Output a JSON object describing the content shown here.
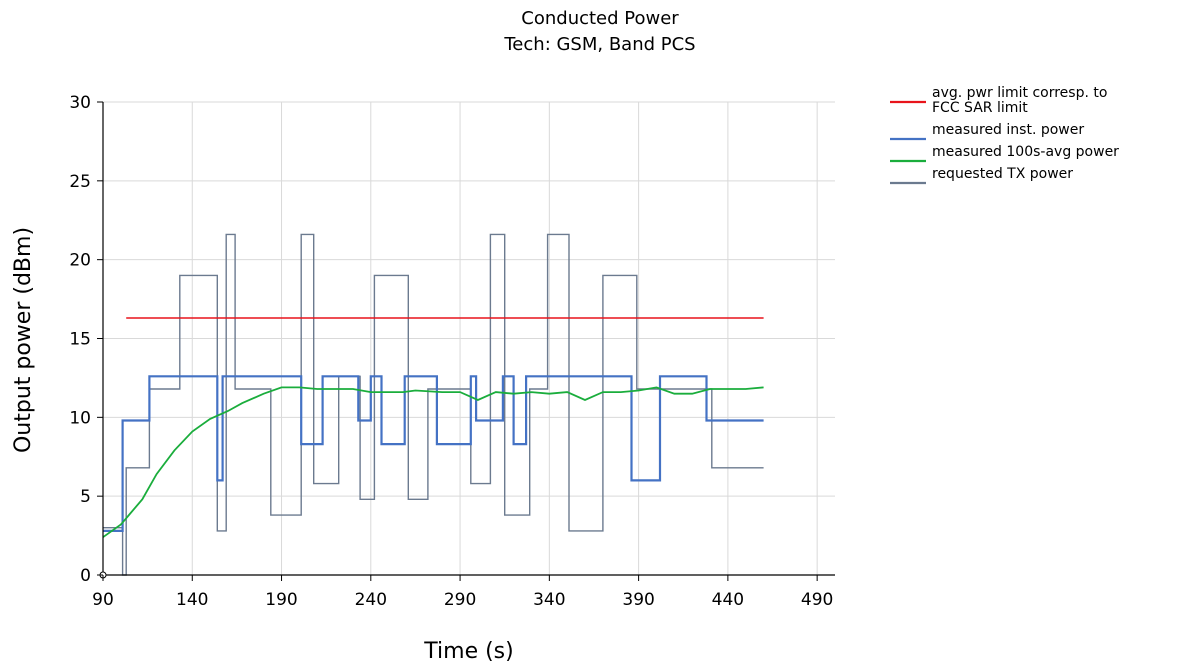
{
  "chart_data": {
    "type": "line",
    "title": "Conducted Power",
    "subtitle": "Tech: GSM, Band PCS",
    "xlabel": "Time (s)",
    "ylabel": "Output power (dBm)",
    "xlim": [
      90,
      500
    ],
    "ylim": [
      0,
      30
    ],
    "xticks": [
      90,
      140,
      190,
      240,
      290,
      340,
      390,
      440,
      490
    ],
    "yticks": [
      0,
      5,
      10,
      15,
      20,
      25,
      30
    ],
    "grid": true,
    "legend_position": "top-right",
    "series": [
      {
        "name": "avg. pwr limit corresp. to FCC SAR limit",
        "color": "#e8141b",
        "x": [
          103,
          460
        ],
        "y": [
          16.3,
          16.3
        ]
      },
      {
        "name": "measured inst. power",
        "color": "#4472c4",
        "x": [
          90,
          101,
          101,
          103,
          103,
          116,
          116,
          117,
          117,
          132,
          132,
          154,
          154,
          157,
          157,
          165,
          165,
          183,
          183,
          201,
          201,
          213,
          213,
          233,
          233,
          240,
          240,
          246,
          246,
          259,
          259,
          266,
          266,
          277,
          277,
          296,
          296,
          299,
          299,
          314,
          314,
          320,
          320,
          327,
          327,
          339,
          339,
          346,
          346,
          357,
          357,
          368,
          368,
          386,
          386,
          402,
          402,
          412,
          412,
          428,
          428,
          447,
          447,
          460
        ],
        "y": [
          2.8,
          2.8,
          9.8,
          9.8,
          9.8,
          9.8,
          12.6,
          12.6,
          12.6,
          12.6,
          12.6,
          12.6,
          6,
          6,
          12.6,
          12.6,
          12.6,
          12.6,
          12.6,
          12.6,
          8.3,
          8.3,
          12.6,
          12.6,
          9.8,
          9.8,
          12.6,
          12.6,
          8.3,
          8.3,
          12.6,
          12.6,
          12.6,
          12.6,
          8.3,
          8.3,
          12.6,
          12.6,
          9.8,
          9.8,
          12.6,
          12.6,
          8.3,
          8.3,
          12.6,
          12.6,
          12.6,
          12.6,
          12.6,
          12.6,
          12.6,
          12.6,
          12.6,
          12.6,
          6,
          6,
          12.6,
          12.6,
          12.6,
          12.6,
          9.8,
          9.8,
          9.8,
          9.8
        ]
      },
      {
        "name": "measured 100s-avg power",
        "color": "#1aad3c",
        "x": [
          90,
          100,
          112,
          120,
          130,
          140,
          150,
          160,
          168,
          180,
          190,
          200,
          210,
          220,
          230,
          240,
          250,
          258,
          265,
          280,
          290,
          300,
          310,
          320,
          330,
          340,
          350,
          360,
          370,
          380,
          390,
          400,
          410,
          420,
          430,
          440,
          450,
          460
        ],
        "y": [
          2.4,
          3.2,
          4.8,
          6.4,
          7.9,
          9.1,
          9.9,
          10.4,
          10.9,
          11.5,
          11.9,
          11.9,
          11.8,
          11.8,
          11.8,
          11.6,
          11.6,
          11.6,
          11.7,
          11.6,
          11.6,
          11.1,
          11.6,
          11.5,
          11.6,
          11.5,
          11.6,
          11.1,
          11.6,
          11.6,
          11.7,
          11.9,
          11.5,
          11.5,
          11.8,
          11.8,
          11.8,
          11.9
        ]
      },
      {
        "name": "requested TX power",
        "color": "#6b7a8f",
        "x": [
          90,
          101,
          101,
          103,
          103,
          116,
          116,
          133,
          133,
          154,
          154,
          159,
          159,
          164,
          164,
          179,
          179,
          184,
          184,
          201,
          201,
          208,
          208,
          222,
          222,
          234,
          234,
          242,
          242,
          261,
          261,
          272,
          272,
          296,
          296,
          307,
          307,
          315,
          315,
          329,
          329,
          339,
          339,
          351,
          351,
          370,
          370,
          389,
          389,
          403,
          403,
          416,
          416,
          431,
          431,
          447,
          447,
          460
        ],
        "y": [
          3,
          3,
          0,
          0,
          6.8,
          6.8,
          11.8,
          11.8,
          19,
          19,
          2.8,
          2.8,
          21.6,
          21.6,
          11.8,
          11.8,
          11.8,
          11.8,
          3.8,
          3.8,
          21.6,
          21.6,
          5.8,
          5.8,
          12.6,
          12.6,
          4.8,
          4.8,
          19,
          19,
          4.8,
          4.8,
          11.8,
          11.8,
          5.8,
          5.8,
          21.6,
          21.6,
          3.8,
          3.8,
          11.8,
          11.8,
          21.6,
          21.6,
          2.8,
          2.8,
          19,
          19,
          11.8,
          11.8,
          11.8,
          11.8,
          11.8,
          11.8,
          6.8,
          6.8,
          6.8,
          6.8
        ]
      }
    ]
  }
}
